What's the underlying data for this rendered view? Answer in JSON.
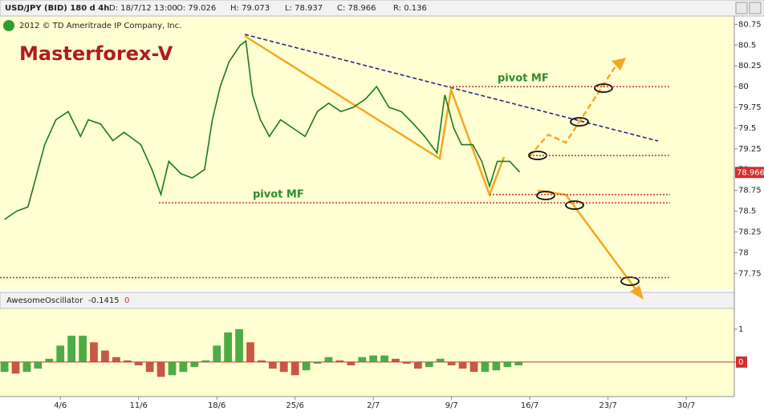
{
  "header": {
    "symbol": "USD/JPY (BID) 180 d 4h",
    "date": "D: 18/7/12 13:00",
    "open": "O: 79.026",
    "high": "H: 79.073",
    "low": "L: 78.937",
    "close": "C: 78.966",
    "range": "R: 0.136",
    "copyright": "2012 © TD Ameritrade IP Company, Inc.",
    "brand": "Masterforex-V"
  },
  "chart_data": [
    {
      "type": "line",
      "color": "#1a7a1a",
      "x": [
        -5.0,
        -3.9,
        -2.9,
        -2.2,
        -1.4,
        -0.4,
        0.7,
        1.8,
        2.5,
        3.6,
        4.7,
        5.7,
        7.2,
        8.2,
        9.0,
        9.7,
        10.8,
        11.8,
        12.9,
        13.6,
        14.3,
        15.1,
        16.1,
        16.6,
        17.2,
        17.9,
        18.7,
        19.7,
        20.8,
        21.9,
        23.0,
        24.0,
        25.1,
        26.2,
        27.3,
        28.3,
        29.4,
        30.5,
        31.6,
        32.6,
        33.7,
        34.4,
        35.2,
        35.9,
        36.9,
        37.7,
        38.4,
        39.1,
        40.2,
        41.1
      ],
      "values": [
        78.4,
        78.5,
        78.55,
        78.9,
        79.3,
        79.6,
        79.7,
        79.4,
        79.6,
        79.55,
        79.35,
        79.45,
        79.3,
        79.0,
        78.7,
        79.1,
        78.95,
        78.9,
        79.0,
        79.6,
        80.0,
        80.3,
        80.5,
        80.55,
        79.9,
        79.6,
        79.4,
        79.6,
        79.5,
        79.4,
        79.7,
        79.8,
        79.7,
        79.75,
        79.85,
        80.0,
        79.75,
        79.7,
        79.55,
        79.4,
        79.2,
        79.9,
        79.5,
        79.3,
        79.3,
        79.1,
        78.8,
        79.1,
        79.1,
        78.97
      ],
      "xlim": [
        -5.4,
        60.3
      ],
      "ylim": [
        77.55,
        80.85
      ],
      "yticks": [
        77.75,
        78,
        78.25,
        78.5,
        78.75,
        79,
        79.25,
        79.5,
        79.75,
        80,
        80.25,
        80.5,
        80.75
      ],
      "last_price": 78.966,
      "levels": [
        80,
        79.17,
        78.7,
        78.6,
        77.7
      ],
      "level_color": "#c0392b",
      "annotations": [
        "pivot MF",
        "pivot MF"
      ]
    },
    {
      "type": "bar",
      "title": "AwesomeOscillator",
      "last_value": "-0.1415",
      "setting": "0",
      "up_color": "#2e9e2e",
      "down_color": "#c0392b",
      "x": [
        -5,
        -4,
        -3,
        -2,
        -1,
        0,
        1,
        2,
        3,
        4,
        5,
        6,
        7,
        8,
        9,
        10,
        11,
        12,
        13,
        14,
        15,
        16,
        17,
        18,
        19,
        20,
        21,
        22,
        23,
        24,
        25,
        26,
        27,
        28,
        29,
        30,
        31,
        32,
        33,
        34,
        35,
        36,
        37,
        38,
        39,
        40,
        41
      ],
      "values": [
        -0.3,
        -0.35,
        -0.3,
        -0.2,
        0.1,
        0.5,
        0.8,
        0.8,
        0.6,
        0.35,
        0.15,
        0.05,
        -0.1,
        -0.3,
        -0.45,
        -0.4,
        -0.3,
        -0.15,
        0.05,
        0.5,
        0.9,
        1.0,
        0.6,
        0.05,
        -0.2,
        -0.3,
        -0.4,
        -0.25,
        -0.05,
        0.15,
        0.05,
        -0.1,
        0.15,
        0.2,
        0.2,
        0.1,
        -0.05,
        -0.2,
        -0.15,
        0.1,
        -0.1,
        -0.2,
        -0.3,
        -0.3,
        -0.25,
        -0.15,
        -0.1
      ],
      "xlim": [
        -5.4,
        60.3
      ],
      "ylim": [
        -1.05,
        1.63
      ],
      "yticks": [
        0,
        1
      ],
      "xticks": [
        {
          "value": 0,
          "label": "4/6"
        },
        {
          "value": 7,
          "label": "11/6"
        },
        {
          "value": 14,
          "label": "18/6"
        },
        {
          "value": 21,
          "label": "25/6"
        },
        {
          "value": 28,
          "label": "2/7"
        },
        {
          "value": 35,
          "label": "9/7"
        },
        {
          "value": 42,
          "label": "16/7"
        },
        {
          "value": 49,
          "label": "23/7"
        },
        {
          "value": 56,
          "label": "30/7"
        }
      ]
    }
  ]
}
